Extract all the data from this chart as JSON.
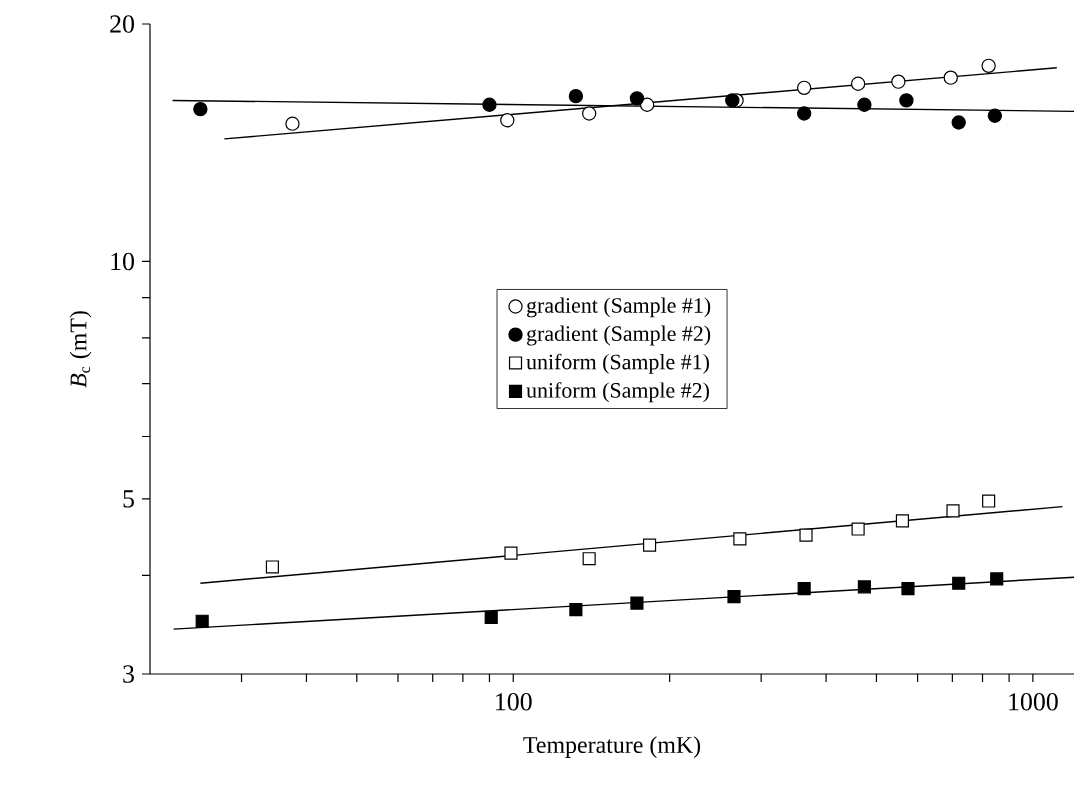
{
  "chart_data": {
    "type": "scatter",
    "xlabel": "Temperature (mK)",
    "ylabel": "*B*$_{c}$ (mT)",
    "log": "xy",
    "grid": false,
    "legend": "center",
    "xlim": [
      20,
      1200
    ],
    "ylim": [
      3,
      20
    ],
    "xticks": [
      {
        "value": 30,
        "label": null
      },
      {
        "value": 40,
        "label": null
      },
      {
        "value": 50,
        "label": null
      },
      {
        "value": 60,
        "label": null
      },
      {
        "value": 70,
        "label": null
      },
      {
        "value": 80,
        "label": null
      },
      {
        "value": 90,
        "label": null
      },
      100,
      {
        "value": 200,
        "label": null
      },
      {
        "value": 300,
        "label": null
      },
      {
        "value": 400,
        "label": null
      },
      {
        "value": 500,
        "label": null
      },
      {
        "value": 600,
        "label": null
      },
      {
        "value": 700,
        "label": null
      },
      {
        "value": 800,
        "label": null
      },
      {
        "value": 900,
        "label": null
      },
      1000
    ],
    "yticks": [
      3,
      {
        "value": 4,
        "label": null
      },
      5,
      {
        "value": 6,
        "label": null
      },
      {
        "value": 7,
        "label": null
      },
      {
        "value": 8,
        "label": null
      },
      {
        "value": 9,
        "label": null
      },
      10,
      20
    ],
    "series": [
      {
        "name": "gradient (Sample #1)",
        "color": "#ffffff",
        "marker": "circle",
        "x": [
          37.6,
          97.4,
          140,
          181,
          269,
          363,
          461,
          551,
          695,
          822
        ],
        "values": [
          14.95,
          15.1,
          15.4,
          15.8,
          16.0,
          16.6,
          16.8,
          16.9,
          17.1,
          17.7
        ]
      },
      {
        "name": "gradient (Sample #2)",
        "color": "#000000",
        "marker": "circle",
        "x": [
          25.0,
          90,
          132,
          173,
          264,
          363,
          474,
          571,
          720,
          845
        ],
        "values": [
          15.6,
          15.8,
          16.2,
          16.1,
          16.0,
          15.4,
          15.8,
          16.0,
          15.0,
          15.3
        ]
      },
      {
        "name": "uniform (Sample #1)",
        "color": "#ffffff",
        "marker": "square",
        "x": [
          34.4,
          99,
          140,
          183,
          273,
          366,
          461,
          561,
          702,
          822
        ],
        "values": [
          4.1,
          4.27,
          4.2,
          4.37,
          4.45,
          4.5,
          4.58,
          4.69,
          4.83,
          4.97
        ]
      },
      {
        "name": "uniform (Sample #2)",
        "color": "#000000",
        "marker": "square",
        "x": [
          25.2,
          90.7,
          132,
          173,
          266,
          363,
          474,
          575,
          720,
          852
        ],
        "values": [
          3.5,
          3.54,
          3.62,
          3.69,
          3.76,
          3.85,
          3.87,
          3.85,
          3.91,
          3.96
        ]
      },
      {
        "type": "line",
        "color": "#000000",
        "marker": "none",
        "x": [
          27.8,
          1112
        ],
        "values": [
          14.3,
          17.6
        ]
      },
      {
        "type": "line",
        "color": "#000000",
        "marker": "none",
        "x": [
          22.1,
          1200
        ],
        "values": [
          16.0,
          15.5
        ]
      },
      {
        "type": "line",
        "color": "#000000",
        "marker": "none",
        "x": [
          25,
          1140
        ],
        "values": [
          3.91,
          4.89
        ]
      },
      {
        "type": "line",
        "color": "#000000",
        "marker": "none",
        "x": [
          22.2,
          1200
        ],
        "values": [
          3.42,
          3.98
        ]
      }
    ]
  }
}
